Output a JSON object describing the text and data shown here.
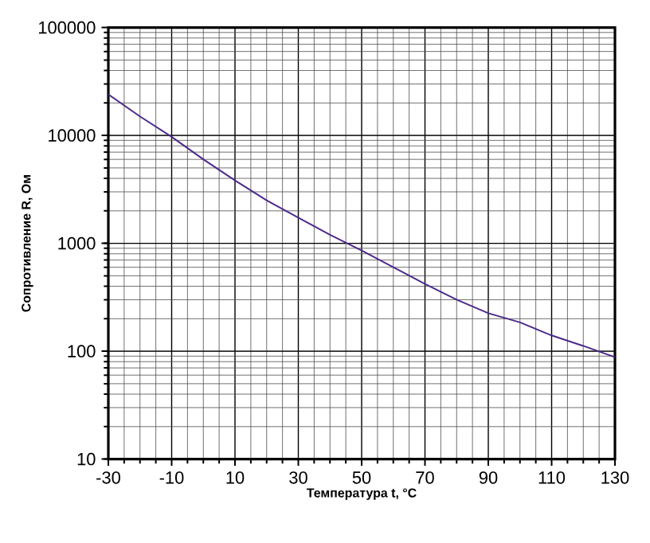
{
  "chart_data": {
    "type": "line",
    "xlabel": "Температура t, °C",
    "ylabel": "Сопротивление R, Ом",
    "log": "y",
    "grid": true,
    "marker": "none",
    "line_style": "solid",
    "xlim": [
      -30,
      130
    ],
    "ylim": [
      10,
      100000
    ],
    "xticks": [
      -30,
      -10,
      10,
      30,
      50,
      70,
      90,
      110,
      130
    ],
    "yticks": [
      10,
      100,
      1000,
      10000,
      100000
    ],
    "x": [
      -30,
      -20,
      -10,
      0,
      10,
      20,
      30,
      40,
      50,
      60,
      70,
      80,
      90,
      100,
      110,
      120,
      130
    ],
    "series": [
      {
        "color": "#4b2a8c",
        "values": [
          24000,
          15000,
          9700,
          6000,
          3830,
          2500,
          1730,
          1200,
          857,
          600,
          420,
          300,
          225,
          185,
          140,
          112,
          88
        ]
      }
    ]
  }
}
